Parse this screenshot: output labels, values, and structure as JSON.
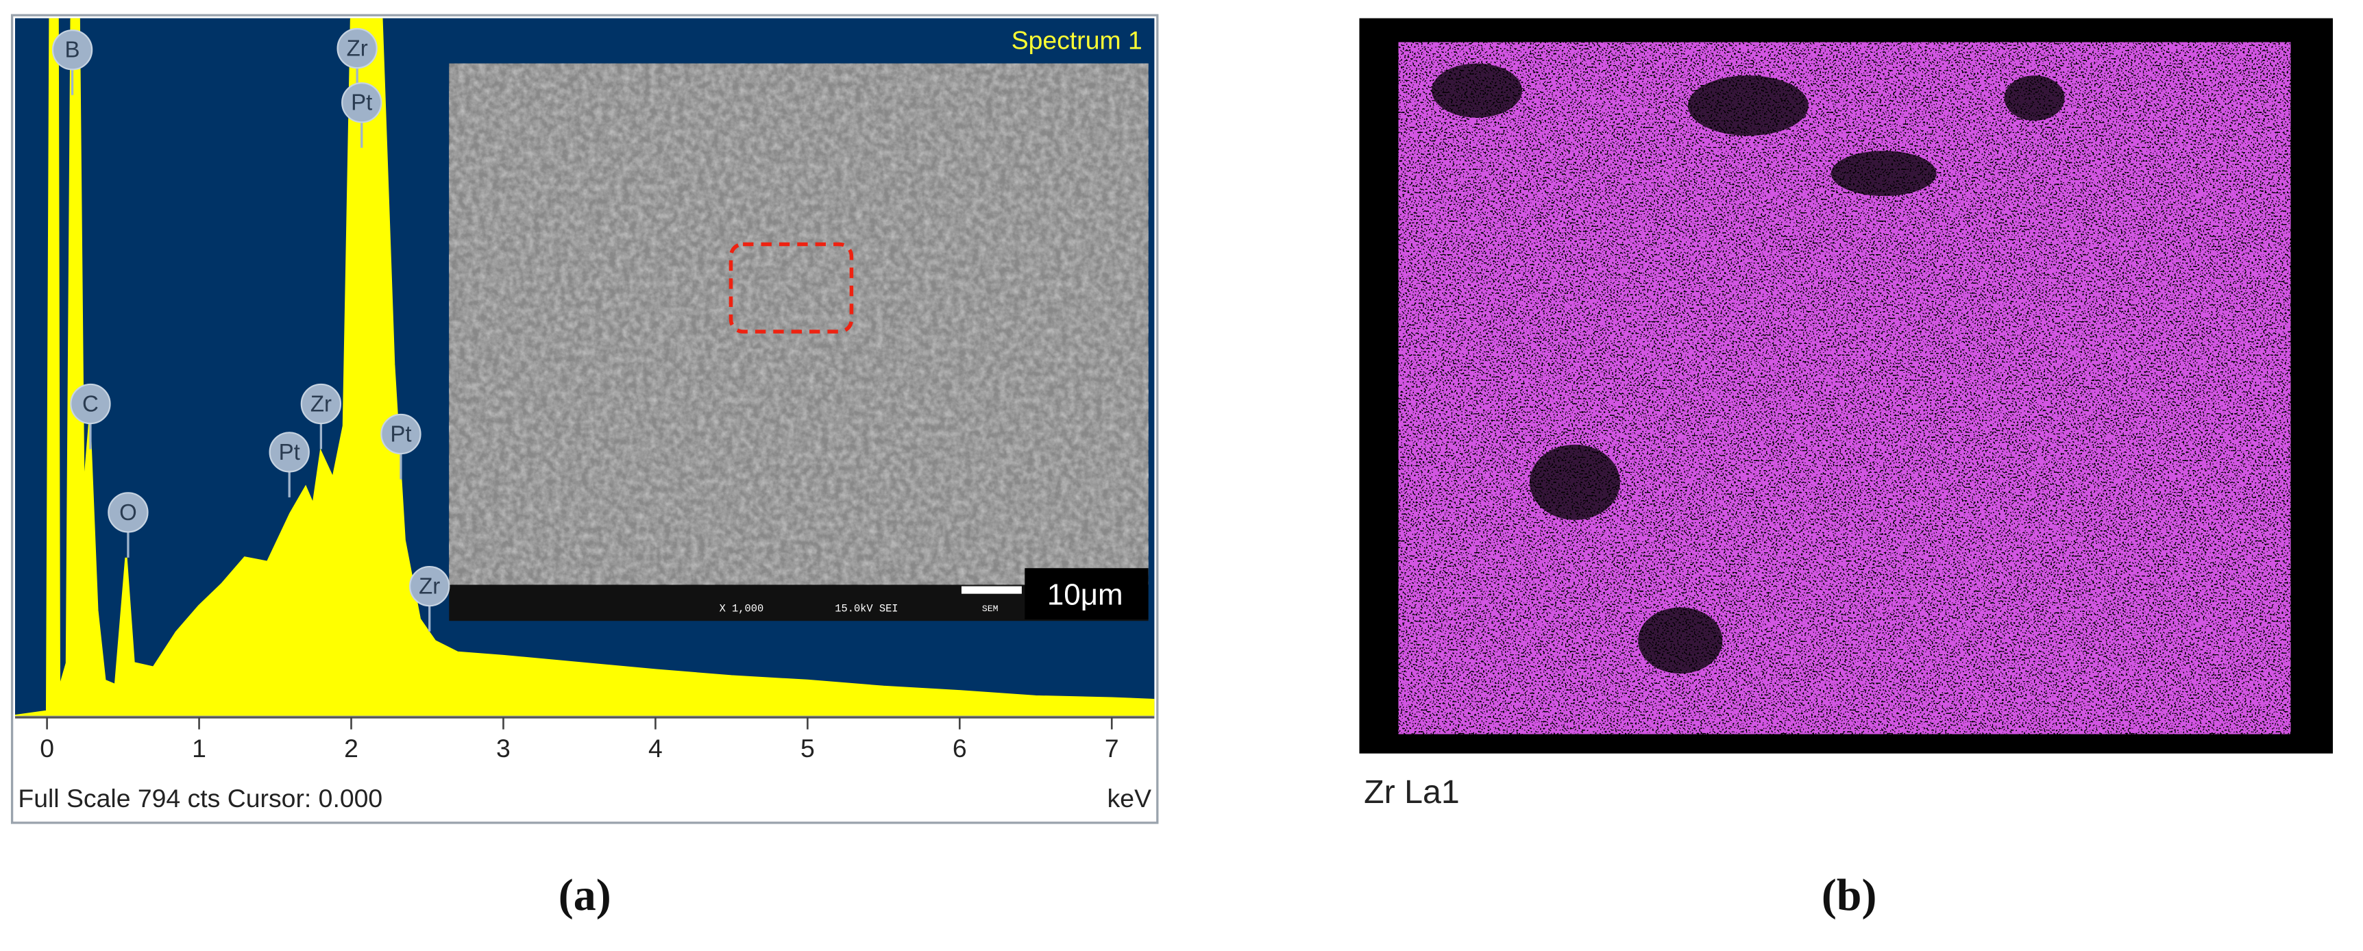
{
  "chart_data": {
    "type": "area",
    "title": "Spectrum 1",
    "x": [
      -0.21,
      0.0,
      0.02,
      0.07,
      0.08,
      0.13,
      0.16,
      0.21,
      0.24,
      0.28,
      0.33,
      0.38,
      0.45,
      0.52,
      0.57,
      0.7,
      0.85,
      1.0,
      1.15,
      1.3,
      1.45,
      1.6,
      1.7,
      1.75,
      1.8,
      1.88,
      1.95,
      2.0,
      2.2,
      2.28,
      2.35,
      2.45,
      2.55,
      2.7,
      3.0,
      3.5,
      4.0,
      4.5,
      5.0,
      5.5,
      6.0,
      6.5,
      7.0,
      7.28
    ],
    "values": [
      0,
      5,
      794,
      794,
      30,
      60,
      794,
      794,
      250,
      334,
      120,
      40,
      35,
      180,
      60,
      55,
      95,
      125,
      150,
      180,
      175,
      230,
      260,
      240,
      300,
      270,
      330,
      794,
      794,
      400,
      200,
      110,
      85,
      72,
      68,
      60,
      52,
      45,
      40,
      33,
      28,
      22,
      20,
      18
    ],
    "color": "#ffff00",
    "xlim": [
      -0.21,
      7.28
    ],
    "ylim": [
      0,
      794
    ],
    "xticks": [
      0,
      1,
      2,
      3,
      4,
      5,
      6,
      7
    ],
    "x_label": "keV",
    "footer": "Full Scale 794 cts Cursor: 0.000",
    "annotations": [
      "B",
      "Zr",
      "Pt",
      "C",
      "Zr",
      "Pt",
      "Pt",
      "O",
      "Zr"
    ],
    "inset": {
      "magnification": "X 1,000",
      "voltage": "15.0kV SEI",
      "instrument": "SEM",
      "scale_bar": "10μm"
    }
  },
  "panel_b": {
    "label": "Zr La1"
  },
  "captions": [
    "(a)",
    "(b)"
  ]
}
